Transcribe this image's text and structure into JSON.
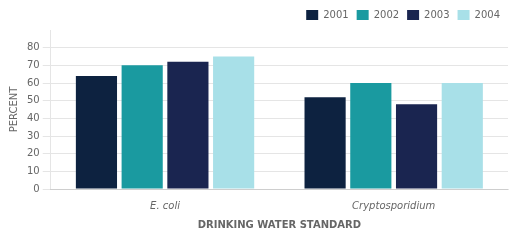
{
  "chart_data": {
    "type": "bar",
    "categories": [
      "E. coli",
      "Cryptosporidium"
    ],
    "series": [
      {
        "name": "2001",
        "color": "#0d2240",
        "values": [
          64,
          52
        ]
      },
      {
        "name": "2002",
        "color": "#1a9aa0",
        "values": [
          70,
          60
        ]
      },
      {
        "name": "2003",
        "color": "#1a2550",
        "values": [
          72,
          48
        ]
      },
      {
        "name": "2004",
        "color": "#a8e0e8",
        "values": [
          75,
          60
        ]
      }
    ],
    "xlabel": "DRINKING WATER STANDARD",
    "ylabel": "PERCENT",
    "ylim": [
      0,
      90
    ],
    "yticks": [
      0,
      10,
      20,
      30,
      40,
      50,
      60,
      70,
      80
    ],
    "grid": true,
    "legend": "upper right"
  }
}
